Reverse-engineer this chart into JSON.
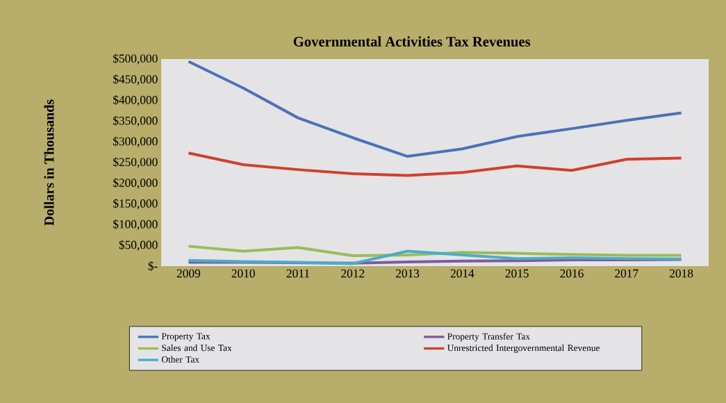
{
  "chart_data": {
    "type": "line",
    "title": "Governmental Activities Tax Revenues",
    "ylabel": "Dollars in Thousands",
    "categories": [
      "2009",
      "2010",
      "2011",
      "2012",
      "2013",
      "2014",
      "2015",
      "2016",
      "2017",
      "2018"
    ],
    "series": [
      {
        "name": "Property Tax",
        "color": "#4a72b8",
        "values": [
          494000,
          430000,
          358000,
          310000,
          265000,
          283000,
          313000,
          332000,
          352000,
          370000
        ]
      },
      {
        "name": "Property Transfer Tax",
        "color": "#7e5a9b",
        "values": [
          9000,
          9000,
          8000,
          7000,
          10000,
          12000,
          13000,
          15000,
          15000,
          16000
        ]
      },
      {
        "name": "Sales and Use Tax",
        "color": "#9bbb59",
        "values": [
          48000,
          36000,
          45000,
          25000,
          27000,
          33000,
          31000,
          28000,
          26000,
          26000
        ]
      },
      {
        "name": "Unrestricted Intergovernmental Revenue",
        "color": "#d0402e",
        "values": [
          273000,
          245000,
          233000,
          223000,
          219000,
          226000,
          242000,
          231000,
          258000,
          261000
        ]
      },
      {
        "name": "Other Tax",
        "color": "#4bacc6",
        "values": [
          14000,
          11000,
          9000,
          6000,
          36000,
          27000,
          18000,
          20000,
          18000,
          17000
        ]
      }
    ],
    "ylim": [
      0,
      500000
    ],
    "yticks": [
      {
        "value": 0,
        "label": "$-"
      },
      {
        "value": 50000,
        "label": "$50,000"
      },
      {
        "value": 100000,
        "label": "$100,000"
      },
      {
        "value": 150000,
        "label": "$150,000"
      },
      {
        "value": 200000,
        "label": "$200,000"
      },
      {
        "value": 250000,
        "label": "$250,000"
      },
      {
        "value": 300000,
        "label": "$300,000"
      },
      {
        "value": 350000,
        "label": "$350,000"
      },
      {
        "value": 400000,
        "label": "$400,000"
      },
      {
        "value": 450000,
        "label": "$450,000"
      },
      {
        "value": 500000,
        "label": "$500,000"
      }
    ],
    "grid": false,
    "legend": "bottom"
  }
}
